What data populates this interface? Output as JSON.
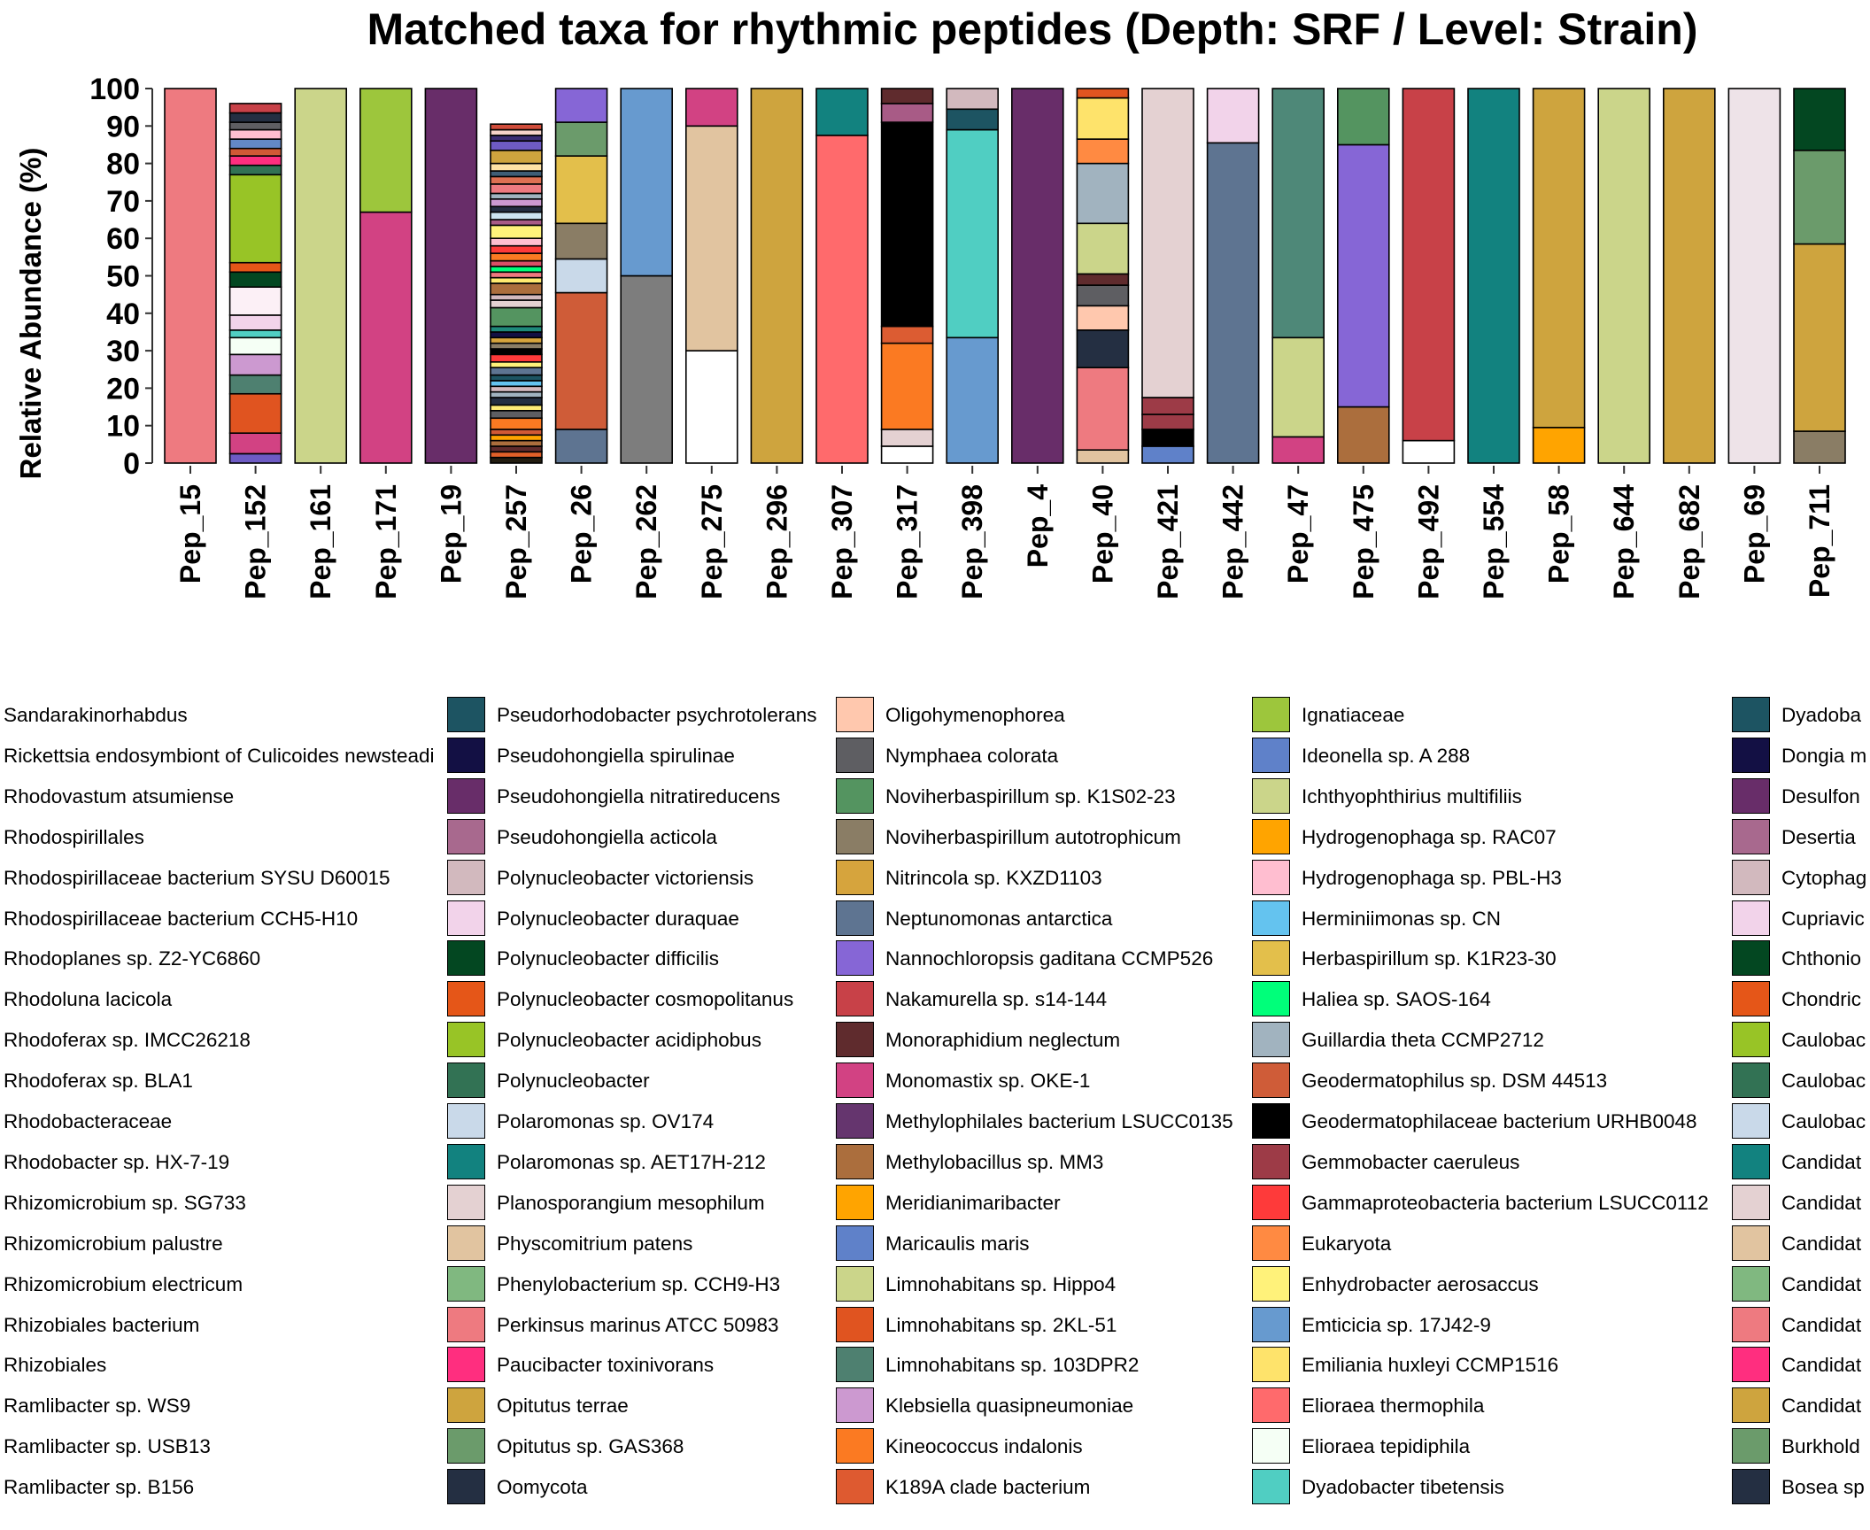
{
  "chart_data": {
    "type": "bar",
    "stacked": true,
    "title": "Matched taxa for rhythmic peptides (Depth: SRF / Level: Strain)",
    "ylabel": "Relative Abundance (%)",
    "xlabel": "",
    "ylim": [
      0,
      100
    ],
    "yticks": [
      0,
      10,
      20,
      30,
      40,
      50,
      60,
      70,
      80,
      90,
      100
    ],
    "grid": false,
    "legend_position": "bottom",
    "categories": [
      "Pep_15",
      "Pep_152",
      "Pep_161",
      "Pep_171",
      "Pep_19",
      "Pep_257",
      "Pep_26",
      "Pep_262",
      "Pep_275",
      "Pep_296",
      "Pep_307",
      "Pep_317",
      "Pep_398",
      "Pep_4",
      "Pep_40",
      "Pep_421",
      "Pep_442",
      "Pep_47",
      "Pep_475",
      "Pep_492",
      "Pep_554",
      "Pep_58",
      "Pep_644",
      "Pep_682",
      "Pep_69",
      "Pep_711"
    ],
    "stacks": [
      [
        [
          100,
          "#EE7A80"
        ]
      ],
      [
        [
          2.5,
          "#6E5BC4"
        ],
        [
          5.5,
          "#D24283"
        ],
        [
          10.5,
          "#E05420"
        ],
        [
          5,
          "#4E8070"
        ],
        [
          5.5,
          "#CC99D0"
        ],
        [
          4.5,
          "#F5FFF5"
        ],
        [
          2,
          "#50CEC2"
        ],
        [
          4,
          "#F2D3EA"
        ],
        [
          7.5,
          "#FCF0F6"
        ],
        [
          4,
          "#034721"
        ],
        [
          2.5,
          "#E55618"
        ],
        [
          23.5,
          "#98C426"
        ],
        [
          2.5,
          "#327254"
        ],
        [
          2.5,
          "#FF2E7F"
        ],
        [
          2,
          "#D15935"
        ],
        [
          2.5,
          "#6388C6"
        ],
        [
          2.5,
          "#FFBED0"
        ],
        [
          2,
          "#5E5E62"
        ],
        [
          2.5,
          "#242F42"
        ],
        [
          2.5,
          "#C84148"
        ]
      ],
      [
        [
          100,
          "#CBD58A"
        ]
      ],
      [
        [
          67,
          "#D24283"
        ],
        [
          33,
          "#9DC63C"
        ]
      ],
      [
        [
          100,
          "#682D69"
        ]
      ],
      [
        [
          1.5,
          "#231D10"
        ],
        [
          1.5,
          "#E16029"
        ],
        [
          1.5,
          "#5F2B2D"
        ],
        [
          1.5,
          "#AB6E3D"
        ],
        [
          1.5,
          "#FFA400"
        ],
        [
          1.5,
          "#D15935"
        ],
        [
          3,
          "#FB7A22"
        ],
        [
          2,
          "#5E5E62"
        ],
        [
          1.5,
          "#FEEC77"
        ],
        [
          2,
          "#242F42"
        ],
        [
          1.5,
          "#A1B3BF"
        ],
        [
          1.5,
          "#D2B9BE"
        ],
        [
          1.5,
          "#64C3EF"
        ],
        [
          1.5,
          "#1D5462"
        ],
        [
          2,
          "#5E7491"
        ],
        [
          1.5,
          "#FFF27A"
        ],
        [
          2,
          "#FE3A3A"
        ],
        [
          1.5,
          "#000000"
        ],
        [
          1.5,
          "#8A7D65"
        ],
        [
          1.5,
          "#D6A43D"
        ],
        [
          1.5,
          "#131044"
        ],
        [
          1.5,
          "#1E8A7B"
        ],
        [
          5,
          "#549460"
        ],
        [
          2,
          "#E4D1D2"
        ],
        [
          1.5,
          "#D2B9BE"
        ],
        [
          3,
          "#AB6E3D"
        ],
        [
          1.5,
          "#FFEA70"
        ],
        [
          1.5,
          "#EE7A80"
        ],
        [
          1.5,
          "#00FF7A"
        ],
        [
          1.5,
          "#D94F67"
        ],
        [
          2,
          "#FB7A22"
        ],
        [
          2,
          "#FE3A3A"
        ],
        [
          2,
          "#FFBED0"
        ],
        [
          3.5,
          "#FFF27A"
        ],
        [
          1.5,
          "#A85B86"
        ],
        [
          2,
          "#CCE4F0"
        ],
        [
          1.5,
          "#242F42"
        ],
        [
          2,
          "#CC99D0"
        ],
        [
          1.5,
          "#A1B3BF"
        ],
        [
          2.5,
          "#EE7A80"
        ],
        [
          2,
          "#DE7052"
        ],
        [
          1.5,
          "#3F5E76"
        ],
        [
          2,
          "#FEE2A5"
        ],
        [
          3.5,
          "#CEA43E"
        ],
        [
          2.5,
          "#6E5BC4"
        ],
        [
          1.5,
          "#3B2D73"
        ],
        [
          1.5,
          "#F5D3C8"
        ],
        [
          1.5,
          "#D04C3A"
        ]
      ],
      [
        [
          9,
          "#5E7491"
        ],
        [
          36.5,
          "#CF5C38"
        ],
        [
          9,
          "#C9D9E9"
        ],
        [
          9.5,
          "#8A7D65"
        ],
        [
          18,
          "#E3BF4B"
        ],
        [
          9,
          "#6B9B6B"
        ],
        [
          9,
          "#8666D6"
        ]
      ],
      [
        [
          50,
          "#7D7D7D"
        ],
        [
          50,
          "#679ACF"
        ]
      ],
      [
        [
          30,
          "#FFFFFF"
        ],
        [
          60,
          "#E1C4A0"
        ],
        [
          10,
          "#D24283"
        ]
      ],
      [
        [
          100,
          "#CEA43E"
        ]
      ],
      [
        [
          87.5,
          "#FF6A6C"
        ],
        [
          12.5,
          "#12827F"
        ]
      ],
      [
        [
          4.5,
          "#FFFFFF"
        ],
        [
          4.5,
          "#E4D1D2"
        ],
        [
          23,
          "#FB7A22"
        ],
        [
          4.5,
          "#DC5C32"
        ],
        [
          54.5,
          "#000000"
        ],
        [
          5,
          "#A85B86"
        ],
        [
          4,
          "#5F2B2D"
        ]
      ],
      [
        [
          33.5,
          "#679ACF"
        ],
        [
          55.5,
          "#50CEC2"
        ],
        [
          5.5,
          "#1D5462"
        ],
        [
          5.5,
          "#D2B9BE"
        ]
      ],
      [
        [
          100,
          "#682D69"
        ]
      ],
      [
        [
          3.5,
          "#E1C4A0"
        ],
        [
          22,
          "#EE7A80"
        ],
        [
          10,
          "#242F42"
        ],
        [
          6.5,
          "#FFC8AE"
        ],
        [
          5.5,
          "#5E5E62"
        ],
        [
          3,
          "#5F2B2D"
        ],
        [
          13.5,
          "#CBD58A"
        ],
        [
          16,
          "#A1B3BF"
        ],
        [
          6.5,
          "#FF8A42"
        ],
        [
          11,
          "#FEE36B"
        ],
        [
          2.5,
          "#E05420"
        ]
      ],
      [
        [
          4.5,
          "#5F81C9"
        ],
        [
          4.5,
          "#000000"
        ],
        [
          4,
          "#9D3B47"
        ],
        [
          4.5,
          "#9D3B47"
        ],
        [
          82.5,
          "#E4D1D2"
        ]
      ],
      [
        [
          85.5,
          "#5E7491"
        ],
        [
          14.5,
          "#F2D3EA"
        ]
      ],
      [
        [
          7,
          "#D24283"
        ],
        [
          26.5,
          "#CBD58A"
        ],
        [
          66.5,
          "#4E8878"
        ]
      ],
      [
        [
          15,
          "#AB6E3D"
        ],
        [
          70,
          "#8666D6"
        ],
        [
          15,
          "#549460"
        ]
      ],
      [
        [
          6,
          "#FFFFFF"
        ],
        [
          94,
          "#C84148"
        ]
      ],
      [
        [
          100,
          "#12827F"
        ]
      ],
      [
        [
          9.5,
          "#FFA400"
        ],
        [
          90.5,
          "#CEA43E"
        ]
      ],
      [
        [
          100,
          "#CBD58A"
        ]
      ],
      [
        [
          100,
          "#CEA43E"
        ]
      ],
      [
        [
          100,
          "#EEE3E8"
        ]
      ],
      [
        [
          8.5,
          "#8A7D65"
        ],
        [
          50,
          "#CEA43E"
        ],
        [
          25,
          "#6B9B6B"
        ],
        [
          16.5,
          "#034721"
        ]
      ]
    ]
  },
  "legend": {
    "columns": [
      {
        "items": [
          {
            "label": "Sandarakinorhabdus",
            "color": "#1D5462"
          },
          {
            "label": "Rickettsia endosymbiont of Culicoides newsteadi",
            "color": "#131044"
          },
          {
            "label": "Rhodovastum atsumiense",
            "color": "#682D69"
          },
          {
            "label": "Rhodospirillales",
            "color": "#A8698E"
          },
          {
            "label": "Rhodospirillaceae bacterium SYSU D60015",
            "color": "#D2B9BE"
          },
          {
            "label": "Rhodospirillaceae bacterium CCH5-H10",
            "color": "#F2D3EA"
          },
          {
            "label": "Rhodoplanes sp. Z2-YC6860",
            "color": "#034721"
          },
          {
            "label": "Rhodoluna lacicola",
            "color": "#E55618"
          },
          {
            "label": "Rhodoferax sp. IMCC26218",
            "color": "#98C426"
          },
          {
            "label": "Rhodoferax sp. BLA1",
            "color": "#327254"
          },
          {
            "label": "Rhodobacteraceae",
            "color": "#C9D9E9"
          },
          {
            "label": "Rhodobacter sp. HX-7-19",
            "color": "#12827F"
          },
          {
            "label": "Rhizomicrobium sp. SG733",
            "color": "#E4D1D2"
          },
          {
            "label": "Rhizomicrobium palustre",
            "color": "#E1C4A0"
          },
          {
            "label": "Rhizomicrobium electricum",
            "color": "#80B880"
          },
          {
            "label": "Rhizobiales bacterium",
            "color": "#EE7A80"
          },
          {
            "label": "Rhizobiales",
            "color": "#FF2E7F"
          },
          {
            "label": "Ramlibacter sp. WS9",
            "color": "#CEA43E"
          },
          {
            "label": "Ramlibacter sp. USB13",
            "color": "#6B9B6B"
          },
          {
            "label": "Ramlibacter sp. B156",
            "color": "#242F42"
          }
        ]
      },
      {
        "items": [
          {
            "label": "Pseudorhodobacter psychrotolerans",
            "color": "#1D5462"
          },
          {
            "label": "Pseudohongiella spirulinae",
            "color": "#131044"
          },
          {
            "label": "Pseudohongiella nitratireducens",
            "color": "#682D69"
          },
          {
            "label": "Pseudohongiella acticola",
            "color": "#A8698E"
          },
          {
            "label": "Polynucleobacter victoriensis",
            "color": "#D2B9BE"
          },
          {
            "label": "Polynucleobacter duraquae",
            "color": "#F2D3EA"
          },
          {
            "label": "Polynucleobacter difficilis",
            "color": "#034721"
          },
          {
            "label": "Polynucleobacter cosmopolitanus",
            "color": "#E55618"
          },
          {
            "label": "Polynucleobacter acidiphobus",
            "color": "#98C426"
          },
          {
            "label": "Polynucleobacter",
            "color": "#327254"
          },
          {
            "label": "Polaromonas sp. OV174",
            "color": "#C9D9E9"
          },
          {
            "label": "Polaromonas sp. AET17H-212",
            "color": "#12827F"
          },
          {
            "label": "Planosporangium mesophilum",
            "color": "#E4D1D2"
          },
          {
            "label": "Physcomitrium patens",
            "color": "#E1C4A0"
          },
          {
            "label": "Phenylobacterium sp. CCH9-H3",
            "color": "#80B880"
          },
          {
            "label": "Perkinsus marinus ATCC 50983",
            "color": "#EE7A80"
          },
          {
            "label": "Paucibacter toxinivorans",
            "color": "#FF2E7F"
          },
          {
            "label": "Opitutus terrae",
            "color": "#CEA43E"
          },
          {
            "label": "Opitutus sp. GAS368",
            "color": "#6B9B6B"
          },
          {
            "label": "Oomycota",
            "color": "#242F42"
          }
        ]
      },
      {
        "items": [
          {
            "label": "Oligohymenophorea",
            "color": "#FFC8AE"
          },
          {
            "label": "Nymphaea colorata",
            "color": "#5E5E62"
          },
          {
            "label": "Noviherbaspirillum sp. K1S02-23",
            "color": "#549460"
          },
          {
            "label": "Noviherbaspirillum autotrophicum",
            "color": "#8A7D65"
          },
          {
            "label": "Nitrincola sp. KXZD1103",
            "color": "#D6A43D"
          },
          {
            "label": "Neptunomonas antarctica",
            "color": "#5E7491"
          },
          {
            "label": "Nannochloropsis gaditana CCMP526",
            "color": "#8666D6"
          },
          {
            "label": "Nakamurella sp. s14-144",
            "color": "#C84148"
          },
          {
            "label": "Monoraphidium neglectum",
            "color": "#5F2B2D"
          },
          {
            "label": "Monomastix sp. OKE-1",
            "color": "#D24283"
          },
          {
            "label": "Methylophilales bacterium LSUCC0135",
            "color": "#65356E"
          },
          {
            "label": "Methylobacillus sp. MM3",
            "color": "#AB6E3D"
          },
          {
            "label": "Meridianimaribacter",
            "color": "#FFA400"
          },
          {
            "label": "Maricaulis maris",
            "color": "#5F81C9"
          },
          {
            "label": "Limnohabitans sp. Hippo4",
            "color": "#CBD58A"
          },
          {
            "label": "Limnohabitans sp. 2KL-51",
            "color": "#E05420"
          },
          {
            "label": "Limnohabitans sp. 103DPR2",
            "color": "#4E8070"
          },
          {
            "label": "Klebsiella quasipneumoniae",
            "color": "#CC99D0"
          },
          {
            "label": "Kineococcus indalonis",
            "color": "#FB7A22"
          },
          {
            "label": "K189A clade bacterium",
            "color": "#DE5A30"
          }
        ]
      },
      {
        "items": [
          {
            "label": "Ignatiaceae",
            "color": "#9DC63C"
          },
          {
            "label": "Ideonella sp. A 288",
            "color": "#5F81C9"
          },
          {
            "label": "Ichthyophthirius multifiliis",
            "color": "#CBD58A"
          },
          {
            "label": "Hydrogenophaga sp. RAC07",
            "color": "#FFA400"
          },
          {
            "label": "Hydrogenophaga sp. PBL-H3",
            "color": "#FFBED0"
          },
          {
            "label": "Herminiimonas sp. CN",
            "color": "#64C3EF"
          },
          {
            "label": "Herbaspirillum sp. K1R23-30",
            "color": "#E3BF4B"
          },
          {
            "label": "Haliea sp. SAOS-164",
            "color": "#00FF7A"
          },
          {
            "label": "Guillardia theta CCMP2712",
            "color": "#A1B3BF"
          },
          {
            "label": "Geodermatophilus sp. DSM 44513",
            "color": "#CF5C38"
          },
          {
            "label": "Geodermatophilaceae bacterium URHB0048",
            "color": "#000000"
          },
          {
            "label": "Gemmobacter caeruleus",
            "color": "#9D3B47"
          },
          {
            "label": "Gammaproteobacteria bacterium LSUCC0112",
            "color": "#FE3A3A"
          },
          {
            "label": "Eukaryota",
            "color": "#FF8A42"
          },
          {
            "label": "Enhydrobacter aerosaccus",
            "color": "#FFF27A"
          },
          {
            "label": "Emticicia sp. 17J42-9",
            "color": "#679ACF"
          },
          {
            "label": "Emiliania huxleyi CCMP1516",
            "color": "#FEE36B"
          },
          {
            "label": "Elioraea thermophila",
            "color": "#FF6A6C"
          },
          {
            "label": "Elioraea tepidiphila",
            "color": "#F5FFF5"
          },
          {
            "label": "Dyadobacter tibetensis",
            "color": "#50CEC2"
          }
        ]
      },
      {
        "items": [
          {
            "label": "Dyadoba",
            "color": "#1D5462"
          },
          {
            "label": "Dongia m",
            "color": "#131044"
          },
          {
            "label": "Desulfon",
            "color": "#682D69"
          },
          {
            "label": "Desertia",
            "color": "#A8698E"
          },
          {
            "label": "Cytophag",
            "color": "#D2B9BE"
          },
          {
            "label": "Cupriavic",
            "color": "#F2D3EA"
          },
          {
            "label": "Chthonio",
            "color": "#034721"
          },
          {
            "label": "Chondric",
            "color": "#E55618"
          },
          {
            "label": "Caulobac",
            "color": "#98C426"
          },
          {
            "label": "Caulobac",
            "color": "#327254"
          },
          {
            "label": "Caulobac",
            "color": "#C9D9E9"
          },
          {
            "label": "Candidat",
            "color": "#12827F"
          },
          {
            "label": "Candidat",
            "color": "#E4D1D2"
          },
          {
            "label": "Candidat",
            "color": "#E1C4A0"
          },
          {
            "label": "Candidat",
            "color": "#80B880"
          },
          {
            "label": "Candidat",
            "color": "#EE7A80"
          },
          {
            "label": "Candidat",
            "color": "#FF2E7F"
          },
          {
            "label": "Candidat",
            "color": "#CEA43E"
          },
          {
            "label": "Burkhold",
            "color": "#6B9B6B"
          },
          {
            "label": "Bosea sp",
            "color": "#242F42"
          }
        ]
      }
    ]
  }
}
